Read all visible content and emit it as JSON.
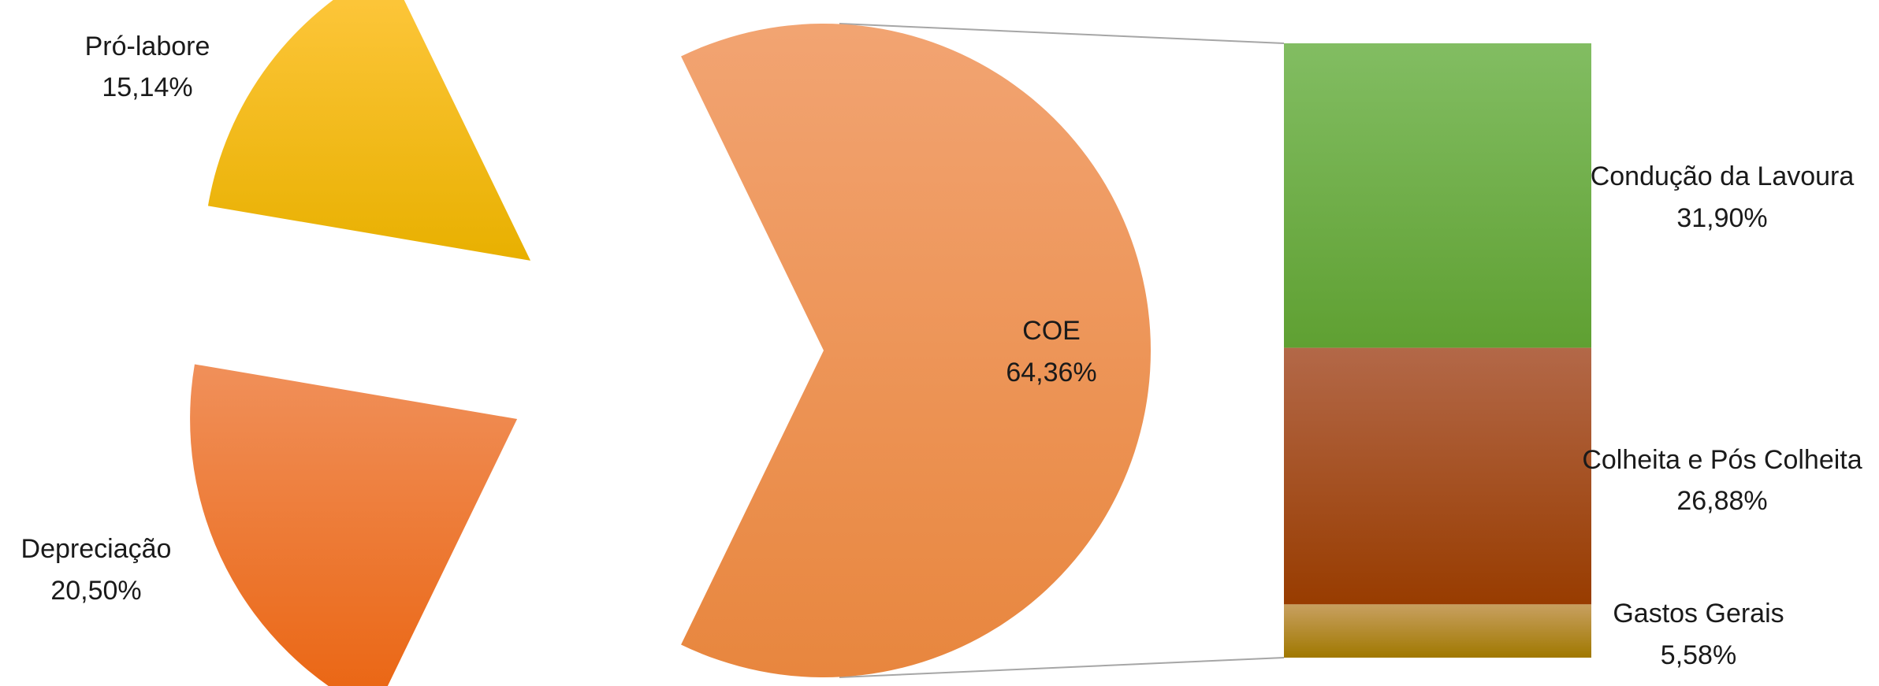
{
  "chart_data": {
    "type": "bar-of-pie",
    "title": "",
    "pie": {
      "slices": [
        {
          "label": "COE",
          "value_label": "64,36%",
          "value": 64.36,
          "color_top": "#f2a472",
          "color_bottom": "#e8863e"
        },
        {
          "label": "Pró-labore",
          "value_label": "15,14%",
          "value": 15.14,
          "color_top": "#ffc840",
          "color_bottom": "#e8b000"
        },
        {
          "label": "Depreciação",
          "value_label": "20,50%",
          "value": 20.5,
          "color_top": "#f0905a",
          "color_bottom": "#ea6410"
        }
      ]
    },
    "bar": {
      "segments": [
        {
          "label": "Condução da Lavoura",
          "value_label": "31,90%",
          "value": 31.9,
          "color_top": "#82bd62",
          "color_bottom": "#5fa032"
        },
        {
          "label": "Colheita e Pós Colheita",
          "value_label": "26,88%",
          "value": 26.88,
          "color_top": "#b36848",
          "color_bottom": "#983c00"
        },
        {
          "label": "Gastos Gerais",
          "value_label": "5,58%",
          "value": 5.58,
          "color_top": "#c8a060",
          "color_bottom": "#a07800"
        }
      ]
    }
  }
}
